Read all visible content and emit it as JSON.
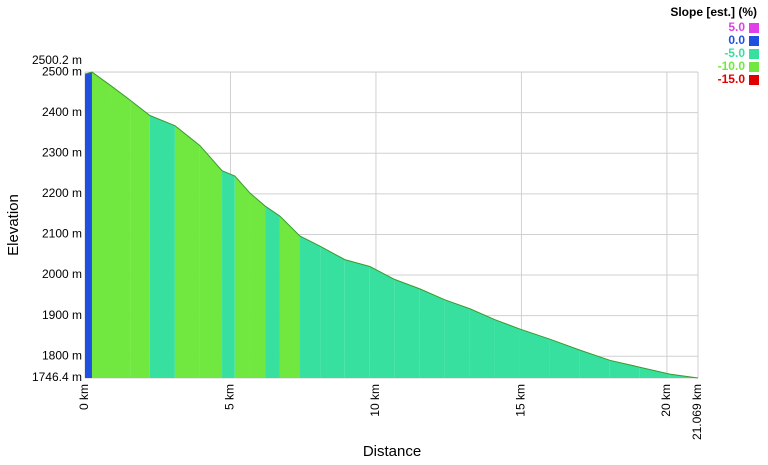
{
  "chart_data": {
    "type": "elevation-profile",
    "x_label": "Distance",
    "y_label": "Elevation",
    "x": [
      0,
      0.24,
      0.86,
      1.55,
      2.23,
      3.09,
      3.95,
      4.71,
      5.15,
      5.67,
      6.19,
      6.7,
      7.39,
      8.08,
      8.93,
      9.79,
      10.65,
      11.51,
      12.37,
      13.23,
      14.09,
      14.95,
      15.98,
      17.01,
      18.04,
      19.07,
      20.1,
      21.069
    ],
    "elevation": [
      2495,
      2500,
      2468,
      2431,
      2393,
      2368,
      2319,
      2257,
      2244,
      2202,
      2170,
      2145,
      2096,
      2071,
      2038,
      2021,
      1989,
      1966,
      1939,
      1917,
      1890,
      1867,
      1842,
      1815,
      1790,
      1773,
      1756,
      1746.4
    ],
    "slope": [
      2.1,
      -5.2,
      -5.4,
      -5.6,
      -2.9,
      -5.7,
      -8.2,
      -3.0,
      -8.1,
      -6.2,
      -4.9,
      -7.1,
      -3.6,
      -3.9,
      -2.0,
      -3.7,
      -2.7,
      -3.1,
      -2.6,
      -3.1,
      -2.7,
      -2.4,
      -2.6,
      -2.4,
      -1.7,
      -1.7,
      -1.0,
      null
    ],
    "xlim": [
      0,
      21.069
    ],
    "xticks": [
      {
        "value": 0,
        "label": "0 km"
      },
      {
        "value": 5,
        "label": "5 km"
      },
      {
        "value": 10,
        "label": "10 km"
      },
      {
        "value": 15,
        "label": "15 km"
      },
      {
        "value": 20,
        "label": "20 km"
      },
      {
        "value": 21.069,
        "label": "21.069 km"
      }
    ],
    "ylim": [
      1746.4,
      2500.2
    ],
    "yticks": [
      {
        "value": 1746.4,
        "label": "1746.4 m"
      },
      {
        "value": 1800,
        "label": "1800 m"
      },
      {
        "value": 1900,
        "label": "1900 m"
      },
      {
        "value": 2000,
        "label": "2000 m"
      },
      {
        "value": 2100,
        "label": "2100 m"
      },
      {
        "value": 2200,
        "label": "2200 m"
      },
      {
        "value": 2300,
        "label": "2300 m"
      },
      {
        "value": 2400,
        "label": "2400 m"
      },
      {
        "value": 2500,
        "label": "2500 m"
      },
      {
        "value": 2500.2,
        "label": "2500.2 m"
      }
    ],
    "grid": true,
    "legend": {
      "title": "Slope [est.] (%)",
      "position": "top-right",
      "items": [
        {
          "value": 5,
          "label": "5.0",
          "color": "#e040e8"
        },
        {
          "value": 0,
          "label": "0.0",
          "color": "#2050e0"
        },
        {
          "value": -5,
          "label": "-5.0",
          "color": "#38e0a0"
        },
        {
          "value": -10,
          "label": "-10.0",
          "color": "#70e840"
        },
        {
          "value": -15,
          "label": "-15.0",
          "color": "#e00000"
        }
      ]
    }
  }
}
